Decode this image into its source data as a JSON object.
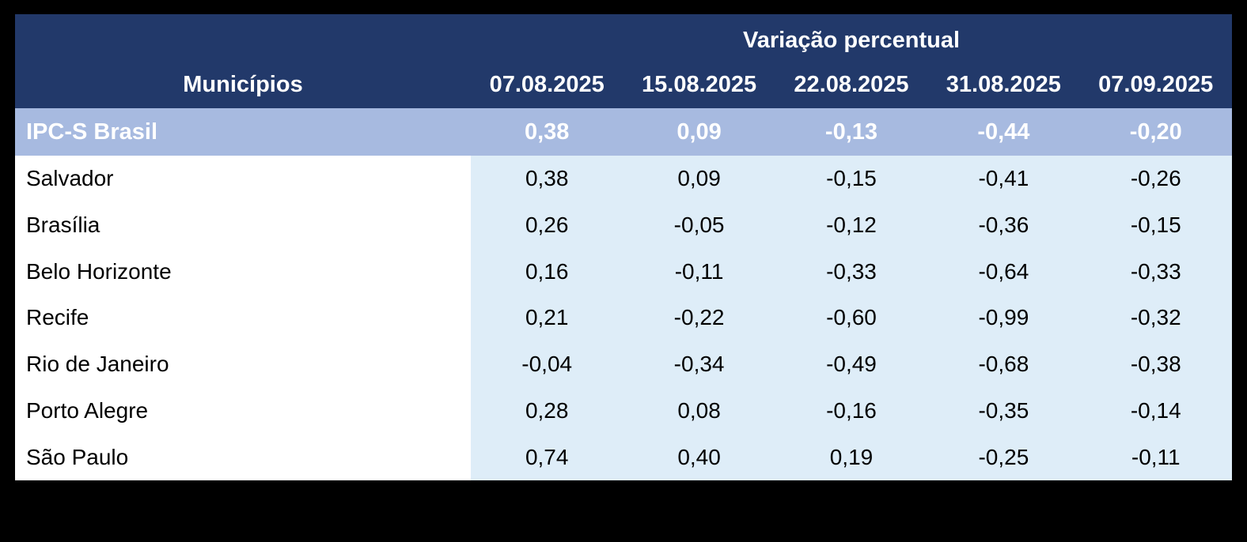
{
  "header": {
    "group_label": "Variação percentual",
    "municipios_label": "Municípios",
    "dates": [
      "07.08.2025",
      "15.08.2025",
      "22.08.2025",
      "31.08.2025",
      "07.09.2025"
    ]
  },
  "highlight": {
    "label": "IPC-S Brasil",
    "values": [
      "0,38",
      "0,09",
      "-0,13",
      "-0,44",
      "-0,20"
    ]
  },
  "rows": [
    {
      "label": "Salvador",
      "values": [
        "0,38",
        "0,09",
        "-0,15",
        "-0,41",
        "-0,26"
      ]
    },
    {
      "label": "Brasília",
      "values": [
        "0,26",
        "-0,05",
        "-0,12",
        "-0,36",
        "-0,15"
      ]
    },
    {
      "label": "Belo Horizonte",
      "values": [
        "0,16",
        "-0,11",
        "-0,33",
        "-0,64",
        "-0,33"
      ]
    },
    {
      "label": "Recife",
      "values": [
        "0,21",
        "-0,22",
        "-0,60",
        "-0,99",
        "-0,32"
      ]
    },
    {
      "label": "Rio de Janeiro",
      "values": [
        "-0,04",
        "-0,34",
        "-0,49",
        "-0,68",
        "-0,38"
      ]
    },
    {
      "label": "Porto Alegre",
      "values": [
        "0,28",
        "0,08",
        "-0,16",
        "-0,35",
        "-0,14"
      ]
    },
    {
      "label": "São Paulo",
      "values": [
        "0,74",
        "0,40",
        "0,19",
        "-0,25",
        "-0,11"
      ]
    }
  ],
  "colors": {
    "frame": "#000000",
    "header_bg": "#22396A",
    "highlight_bg": "#A7BAE0",
    "data_bg": "#DEEDF8",
    "name_bg": "#FFFFFF",
    "header_text": "#FFFFFF",
    "body_text": "#000000"
  },
  "chart_data": {
    "type": "table",
    "title": "Variação percentual",
    "row_header": "Municípios",
    "categories": [
      "07.08.2025",
      "15.08.2025",
      "22.08.2025",
      "31.08.2025",
      "07.09.2025"
    ],
    "series": [
      {
        "name": "IPC-S Brasil",
        "values": [
          0.38,
          0.09,
          -0.13,
          -0.44,
          -0.2
        ]
      },
      {
        "name": "Salvador",
        "values": [
          0.38,
          0.09,
          -0.15,
          -0.41,
          -0.26
        ]
      },
      {
        "name": "Brasília",
        "values": [
          0.26,
          -0.05,
          -0.12,
          -0.36,
          -0.15
        ]
      },
      {
        "name": "Belo Horizonte",
        "values": [
          0.16,
          -0.11,
          -0.33,
          -0.64,
          -0.33
        ]
      },
      {
        "name": "Recife",
        "values": [
          0.21,
          -0.22,
          -0.6,
          -0.99,
          -0.32
        ]
      },
      {
        "name": "Rio de Janeiro",
        "values": [
          -0.04,
          -0.34,
          -0.49,
          -0.68,
          -0.38
        ]
      },
      {
        "name": "Porto Alegre",
        "values": [
          0.28,
          0.08,
          -0.16,
          -0.35,
          -0.14
        ]
      },
      {
        "name": "São Paulo",
        "values": [
          0.74,
          0.4,
          0.19,
          -0.25,
          -0.11
        ]
      }
    ]
  }
}
